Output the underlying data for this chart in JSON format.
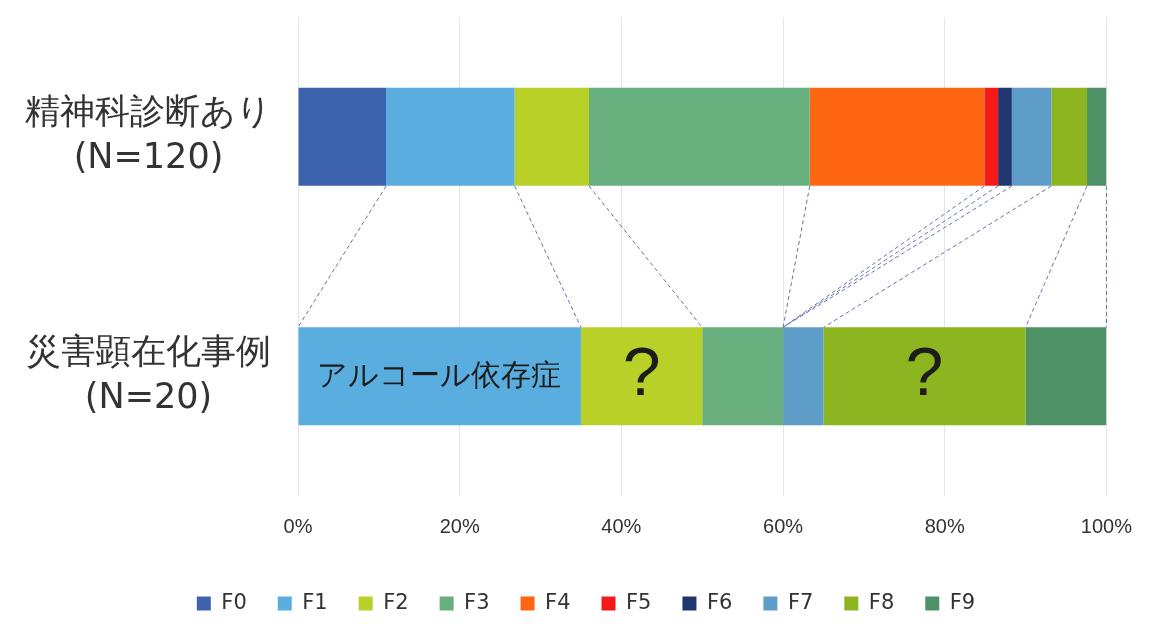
{
  "chart_data": {
    "type": "bar",
    "orientation": "horizontal",
    "stacked": true,
    "categories": [
      "精神科診断あり\n(N=120)",
      "災害顕在化事例\n(N=20)"
    ],
    "series": [
      {
        "name": "F0",
        "color": "#3d63ae",
        "values": [
          10.9,
          0
        ]
      },
      {
        "name": "F1",
        "color": "#5aaddf",
        "values": [
          15.9,
          35
        ]
      },
      {
        "name": "F2",
        "color": "#b9d028",
        "values": [
          9.2,
          15
        ]
      },
      {
        "name": "F3",
        "color": "#67b07e",
        "values": [
          27.3,
          10
        ]
      },
      {
        "name": "F4",
        "color": "#ff6611",
        "values": [
          21.6,
          0
        ]
      },
      {
        "name": "F5",
        "color": "#f41a1a",
        "values": [
          1.7,
          0
        ]
      },
      {
        "name": "F6",
        "color": "#203670",
        "values": [
          1.7,
          0
        ]
      },
      {
        "name": "F7",
        "color": "#5e9dc8",
        "values": [
          4.9,
          5
        ]
      },
      {
        "name": "F8",
        "color": "#8db51f",
        "values": [
          4.4,
          25
        ]
      },
      {
        "name": "F9",
        "color": "#4e9166",
        "values": [
          2.4,
          10
        ]
      }
    ],
    "xlim": [
      0,
      100
    ],
    "xticks": [
      {
        "value": 0,
        "label": "0%"
      },
      {
        "value": 20,
        "label": "20%"
      },
      {
        "value": 40,
        "label": "40%"
      },
      {
        "value": 60,
        "label": "60%"
      },
      {
        "value": 80,
        "label": "80%"
      },
      {
        "value": 100,
        "label": "100%"
      }
    ],
    "grid": "x",
    "legend": "bottom",
    "annotations": [
      {
        "text": "アルコール依存症",
        "x": 35,
        "y": "災害顕在化事例\n(N=20)"
      },
      {
        "text": "?",
        "x": 50,
        "y": "災害顕在化事例\n(N=20)"
      },
      {
        "text": "?",
        "x": 90,
        "y": "災害顕在化事例\n(N=20)"
      }
    ]
  }
}
